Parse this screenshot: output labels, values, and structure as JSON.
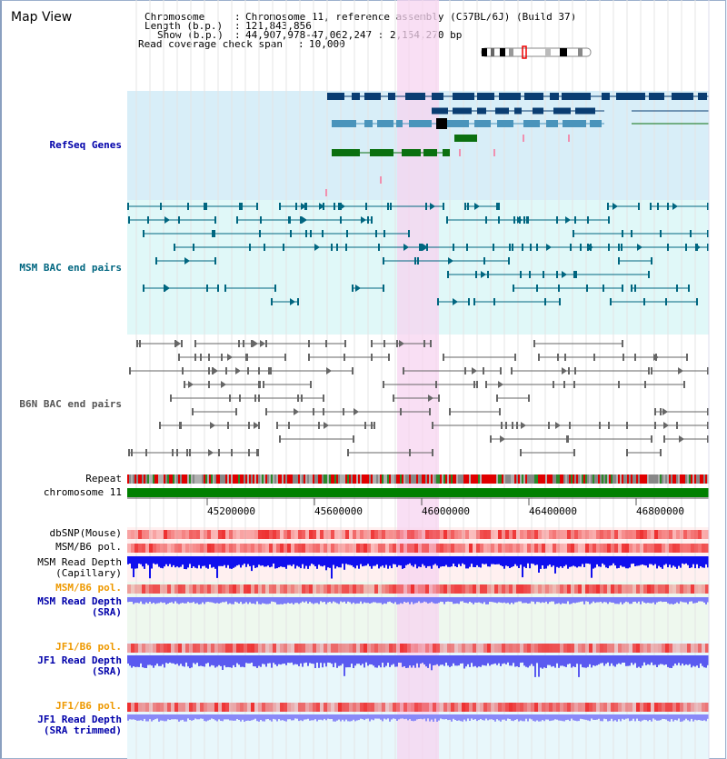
{
  "view": {
    "title": "Map View"
  },
  "info": {
    "chromosome_label": "Chromosome",
    "chromosome_value": "Chromosome 11, reference assembly (C57BL/6J) (Build 37)",
    "length_label": "Length (b.p.)",
    "length_value": "121,843,856",
    "show_label": "Show (b.p.)",
    "show_value": "44,907,978-47,062,247 : 2,154,270 bp",
    "coverage_label": "Read coverage check span",
    "coverage_value": "10,000",
    "separator": ":"
  },
  "tracks": {
    "refseq": "RefSeq Genes",
    "msm_bac": "MSM BAC end pairs",
    "b6n_bac": "B6N BAC end pairs",
    "repeat": "Repeat",
    "chromosome": "chromosome 11",
    "dbsnp": "dbSNP(Mouse)",
    "msm_b6_pol_1": "MSM/B6 pol.",
    "msm_depth_cap_1": "MSM Read Depth",
    "msm_depth_cap_2": "(Capillary)",
    "msm_b6_pol_2": "MSM/B6 pol.",
    "msm_depth_sra_1": "MSM Read Depth",
    "msm_depth_sra_2": "(SRA)",
    "jf1_b6_pol_1": "JF1/B6 pol.",
    "jf1_depth_sra_1": "JF1 Read Depth",
    "jf1_depth_sra_2": "(SRA)",
    "jf1_b6_pol_2": "JF1/B6 pol.",
    "jf1_depth_trim_1": "JF1 Read Depth",
    "jf1_depth_trim_2": "(SRA trimmed)"
  },
  "axis": {
    "ticks": [
      "45200000",
      "45600000",
      "46000000",
      "46400000",
      "46800000"
    ]
  },
  "colors": {
    "highlight": "#f7d4f0",
    "refseq_bg": "#d8eef8",
    "msm_bg": "#e0f8f8",
    "label_blue": "#0000aa",
    "label_teal": "#006680",
    "label_gray": "#555555",
    "label_orange": "#ee9900",
    "gene_dark": "#0a3d72",
    "gene_light": "#4a94bb",
    "gene_green": "#0b7010",
    "depth_blue": "#1010ee",
    "depth_light": "#7a7af8",
    "snp_red": "#ee3030",
    "chrom_green": "#008000"
  }
}
